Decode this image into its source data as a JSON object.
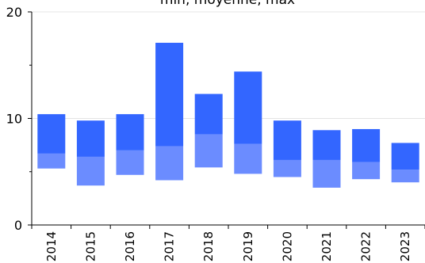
{
  "chart_data": {
    "type": "bar",
    "title": "min, moyenne, max",
    "xlabel": "",
    "ylabel": "",
    "ylim": [
      0,
      20
    ],
    "y_ticks": [
      0,
      10,
      20
    ],
    "y_tick_labels": [
      "0",
      "10",
      "20"
    ],
    "grid": true,
    "legend": "none",
    "categories": [
      "2014",
      "2015",
      "2016",
      "2017",
      "2018",
      "2019",
      "2020",
      "2021",
      "2022",
      "2023"
    ],
    "series": [
      {
        "values": [
          5.3,
          3.7,
          4.7,
          4.2,
          5.4,
          4.8,
          4.5,
          3.5,
          4.3,
          4.0
        ]
      },
      {
        "values": [
          6.7,
          6.4,
          7.0,
          7.4,
          8.5,
          7.6,
          6.1,
          6.1,
          5.9,
          5.2
        ]
      },
      {
        "values": [
          10.4,
          9.8,
          10.4,
          17.1,
          12.3,
          14.4,
          9.8,
          8.9,
          9.0,
          7.7
        ]
      }
    ],
    "colors": {
      "lower_band": "#6b8cff",
      "upper_band": "#3366ff"
    }
  }
}
